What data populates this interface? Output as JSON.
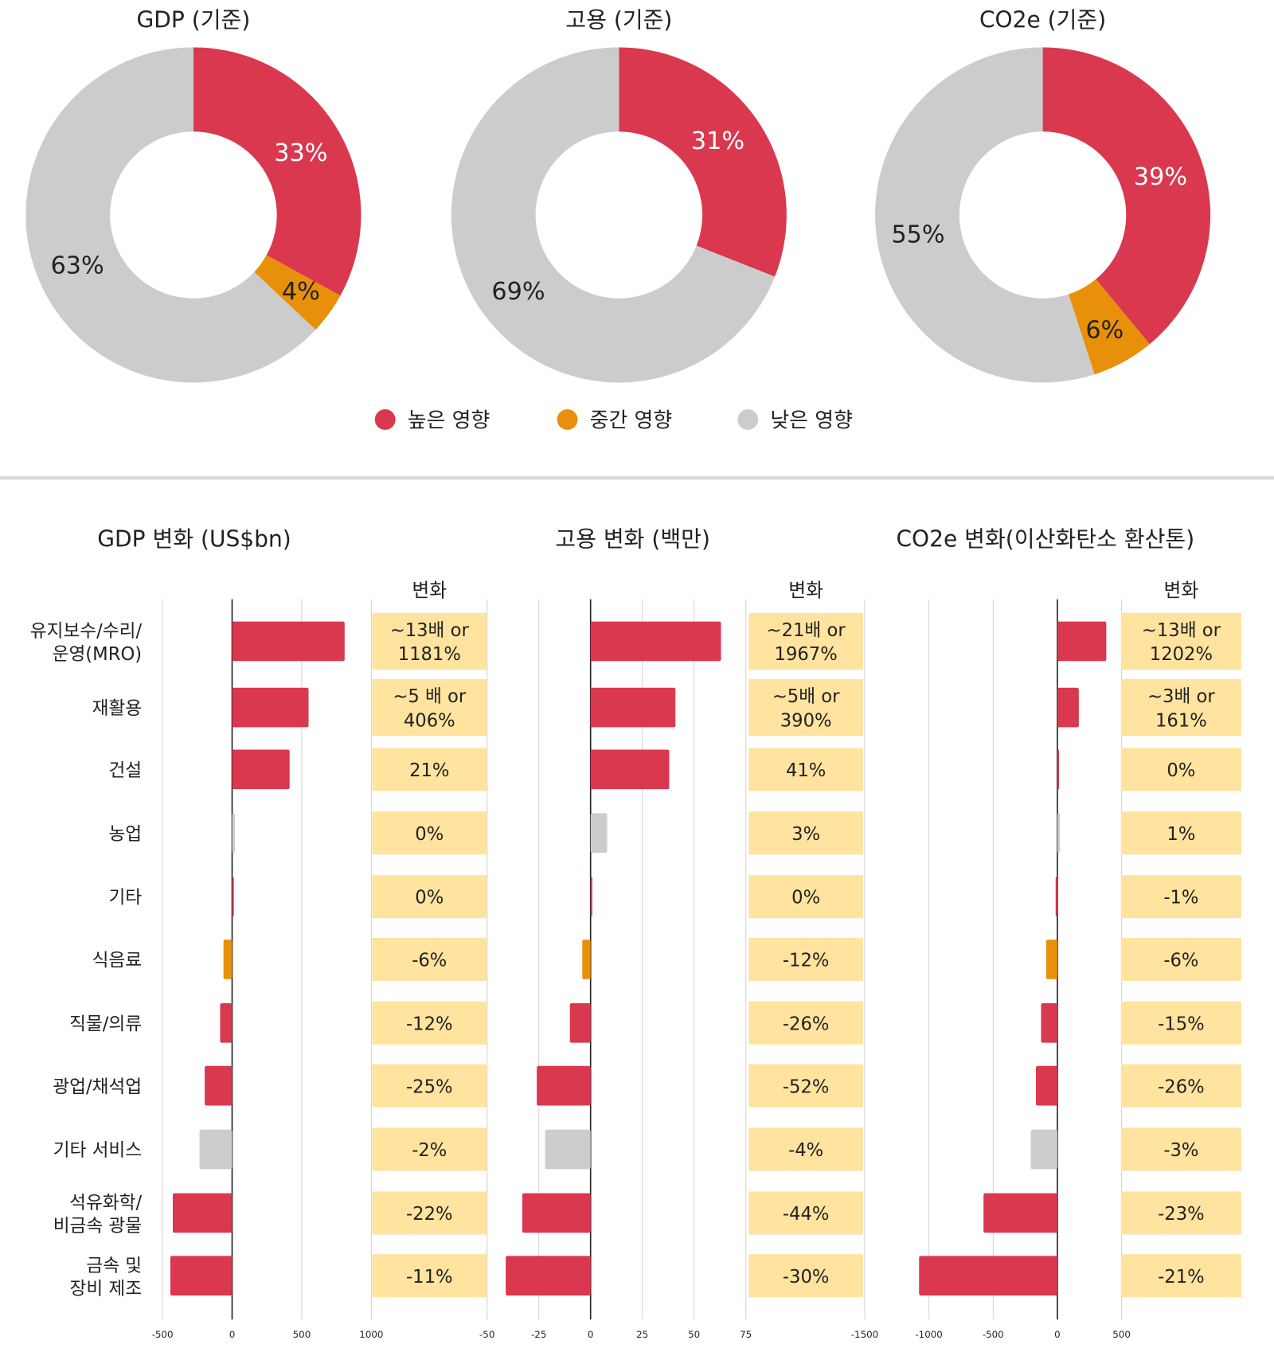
{
  "colors": {
    "high": "#D9384F",
    "mid": "#E8900A",
    "low": "#CCCCCC",
    "table": "#FFE39E"
  },
  "legend": [
    {
      "label": "높은 영향",
      "key": "high"
    },
    {
      "label": "중간 영향",
      "key": "mid"
    },
    {
      "label": "낮은 영향",
      "key": "low"
    }
  ],
  "chart_data": [
    {
      "type": "pie",
      "title": "GDP (기준)",
      "slices": [
        {
          "key": "high",
          "value": 33,
          "label": "33%"
        },
        {
          "key": "mid",
          "value": 4,
          "label": "4%"
        },
        {
          "key": "low",
          "value": 63,
          "label": "63%"
        }
      ]
    },
    {
      "type": "pie",
      "title": "고용 (기준)",
      "slices": [
        {
          "key": "high",
          "value": 31,
          "label": "31%"
        },
        {
          "key": "mid",
          "value": 0,
          "label": ""
        },
        {
          "key": "low",
          "value": 69,
          "label": "69%"
        }
      ]
    },
    {
      "type": "pie",
      "title": "CO2e (기준)",
      "slices": [
        {
          "key": "high",
          "value": 39,
          "label": "39%"
        },
        {
          "key": "mid",
          "value": 6,
          "label": "6%"
        },
        {
          "key": "low",
          "value": 55,
          "label": "55%"
        }
      ]
    },
    {
      "type": "bar",
      "orientation": "horizontal",
      "title": "GDP 변화 (US$bn)",
      "column_header": "변화",
      "xlim": [
        -500,
        1000
      ],
      "ticks": [
        -500,
        0,
        500,
        1000
      ],
      "tick_labels": [
        "-500",
        "0",
        "500",
        "1000"
      ],
      "values": [
        808,
        549,
        413,
        20,
        0,
        -62,
        -86,
        -197,
        -234,
        -426,
        -444
      ],
      "change": [
        "~13배 or\n1181%",
        "~5 배 or\n406%",
        "21%",
        "0%",
        "0%",
        "-6%",
        "-12%",
        "-25%",
        "-2%",
        "-22%",
        "-11%"
      ]
    },
    {
      "type": "bar",
      "orientation": "horizontal",
      "title": "고용 변화 (백만)",
      "column_header": "변화",
      "xlim": [
        -50,
        75
      ],
      "ticks": [
        -50,
        -25,
        0,
        25,
        50,
        75
      ],
      "tick_labels": [
        "-50",
        "-25",
        "0",
        "25",
        "50",
        "75"
      ],
      "values": [
        63,
        41,
        38,
        8,
        0.5,
        -4,
        -10,
        -26,
        -22,
        -33,
        -41
      ],
      "change": [
        "~21배 or\n1967%",
        "~5배 or\n390%",
        "41%",
        "3%",
        "0%",
        "-12%",
        "-26%",
        "-52%",
        "-4%",
        "-44%",
        "-30%"
      ]
    },
    {
      "type": "bar",
      "orientation": "horizontal",
      "title": "CO2e 변화(이산화탄소 환산톤)",
      "column_header": "변화",
      "xlim": [
        -1500,
        500
      ],
      "ticks": [
        -1500,
        -1000,
        -500,
        0,
        500
      ],
      "tick_labels": [
        "-1500",
        "-1000",
        "-500",
        "0",
        "500"
      ],
      "values": [
        381,
        167,
        0,
        20,
        -13,
        -87,
        -127,
        -167,
        -207,
        -575,
        -1077
      ],
      "change": [
        "~13배 or\n1202%",
        "~3배 or\n161%",
        "0%",
        "1%",
        "-1%",
        "-6%",
        "-15%",
        "-26%",
        "-3%",
        "-23%",
        "-21%"
      ]
    }
  ],
  "categories": [
    "유지보수/수리/\n운영(MRO)",
    "재활용",
    "건설",
    "농업",
    "기타",
    "식음료",
    "직물/의류",
    "광업/채석업",
    "기타 서비스",
    "석유화학/\n비금속 광물",
    "금속 및\n장비 제조"
  ],
  "category_impact": [
    "high",
    "high",
    "high",
    "low",
    "high",
    "mid",
    "high",
    "high",
    "low",
    "high",
    "high"
  ]
}
